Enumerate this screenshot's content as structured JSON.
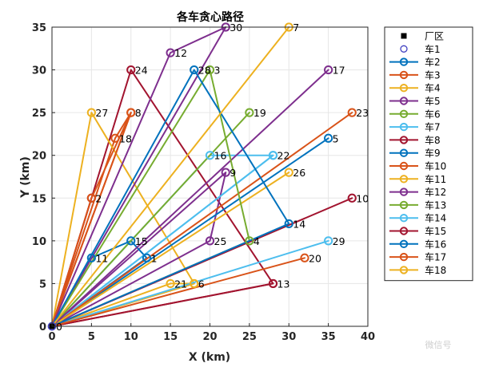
{
  "chart_data": {
    "type": "line",
    "title": "各车贪心路径",
    "xlabel": "X (km)",
    "ylabel": "Y (km)",
    "xlim": [
      0,
      40
    ],
    "ylim": [
      0,
      35
    ],
    "xticks": [
      "0",
      "5",
      "10",
      "15",
      "20",
      "25",
      "30",
      "35",
      "40"
    ],
    "yticks": [
      "0",
      "5",
      "10",
      "15",
      "20",
      "25",
      "30",
      "35"
    ],
    "grid": true,
    "legend_position": "outside-right",
    "depot": {
      "name": "厂区",
      "x": 0,
      "y": 0
    },
    "customers": [
      {
        "label": "1",
        "x": 12,
        "y": 8
      },
      {
        "label": "2",
        "x": 5,
        "y": 15
      },
      {
        "label": "3",
        "x": 20,
        "y": 30
      },
      {
        "label": "4",
        "x": 25,
        "y": 10
      },
      {
        "label": "5",
        "x": 35,
        "y": 22
      },
      {
        "label": "6",
        "x": 18,
        "y": 5
      },
      {
        "label": "7",
        "x": 30,
        "y": 35
      },
      {
        "label": "8",
        "x": 10,
        "y": 25
      },
      {
        "label": "9",
        "x": 22,
        "y": 18
      },
      {
        "label": "10",
        "x": 38,
        "y": 15
      },
      {
        "label": "11",
        "x": 5,
        "y": 8
      },
      {
        "label": "12",
        "x": 15,
        "y": 32
      },
      {
        "label": "13",
        "x": 28,
        "y": 5
      },
      {
        "label": "14",
        "x": 30,
        "y": 12
      },
      {
        "label": "15",
        "x": 10,
        "y": 10
      },
      {
        "label": "16",
        "x": 20,
        "y": 20
      },
      {
        "label": "17",
        "x": 35,
        "y": 30
      },
      {
        "label": "18",
        "x": 8,
        "y": 22
      },
      {
        "label": "19",
        "x": 25,
        "y": 25
      },
      {
        "label": "20",
        "x": 32,
        "y": 8
      },
      {
        "label": "21",
        "x": 15,
        "y": 5
      },
      {
        "label": "22",
        "x": 28,
        "y": 20
      },
      {
        "label": "23",
        "x": 38,
        "y": 25
      },
      {
        "label": "24",
        "x": 10,
        "y": 30
      },
      {
        "label": "25",
        "x": 20,
        "y": 10
      },
      {
        "label": "26",
        "x": 30,
        "y": 18
      },
      {
        "label": "27",
        "x": 5,
        "y": 25
      },
      {
        "label": "28",
        "x": 18,
        "y": 30
      },
      {
        "label": "29",
        "x": 35,
        "y": 10
      },
      {
        "label": "30",
        "x": 22,
        "y": 35
      }
    ],
    "series": [
      {
        "name": "车1",
        "color": "#4040c0",
        "route": []
      },
      {
        "name": "车2",
        "color": "#0072bd",
        "route": [
          "11",
          "15",
          "1"
        ]
      },
      {
        "name": "车3",
        "color": "#d95319",
        "route": [
          "2",
          "8"
        ]
      },
      {
        "name": "车4",
        "color": "#edb120",
        "route": [
          "21",
          "6"
        ]
      },
      {
        "name": "车5",
        "color": "#7e2f8e",
        "route": [
          "12",
          "30"
        ]
      },
      {
        "name": "车6",
        "color": "#77ac30",
        "route": [
          "19"
        ]
      },
      {
        "name": "车7",
        "color": "#4dbeee",
        "route": [
          "22"
        ]
      },
      {
        "name": "车8",
        "color": "#a2142f",
        "route": [
          "13"
        ]
      },
      {
        "name": "车9",
        "color": "#0072bd",
        "route": [
          "5"
        ]
      },
      {
        "name": "车10",
        "color": "#d95319",
        "route": [
          "23"
        ]
      },
      {
        "name": "车11",
        "color": "#edb120",
        "route": [
          "26"
        ]
      },
      {
        "name": "车12",
        "color": "#7e2f8e",
        "route": [
          "17"
        ]
      },
      {
        "name": "车13",
        "color": "#77ac30",
        "route": [
          "3",
          "4"
        ]
      },
      {
        "name": "车14",
        "color": "#4dbeee",
        "route": [
          "29"
        ]
      },
      {
        "name": "车15",
        "color": "#a2142f",
        "route": [
          "10"
        ]
      },
      {
        "name": "车16",
        "color": "#0072bd",
        "route": [
          "28",
          "14"
        ]
      },
      {
        "name": "车17",
        "color": "#d95319",
        "route": [
          "20"
        ]
      },
      {
        "name": "车18",
        "color": "#edb120",
        "route": [
          "7"
        ]
      }
    ],
    "extra_routes": [
      {
        "color": "#a2142f",
        "route": [
          "24",
          "13"
        ]
      },
      {
        "color": "#d95319",
        "route": [
          "18",
          "8"
        ]
      },
      {
        "color": "#edb120",
        "route": [
          "27",
          "6"
        ]
      },
      {
        "color": "#7e2f8e",
        "route": [
          "25",
          "9"
        ]
      },
      {
        "color": "#4dbeee",
        "route": [
          "16",
          "22"
        ]
      },
      {
        "color": "#a2142f",
        "route": [
          "2"
        ]
      }
    ]
  },
  "watermark": "微信号"
}
